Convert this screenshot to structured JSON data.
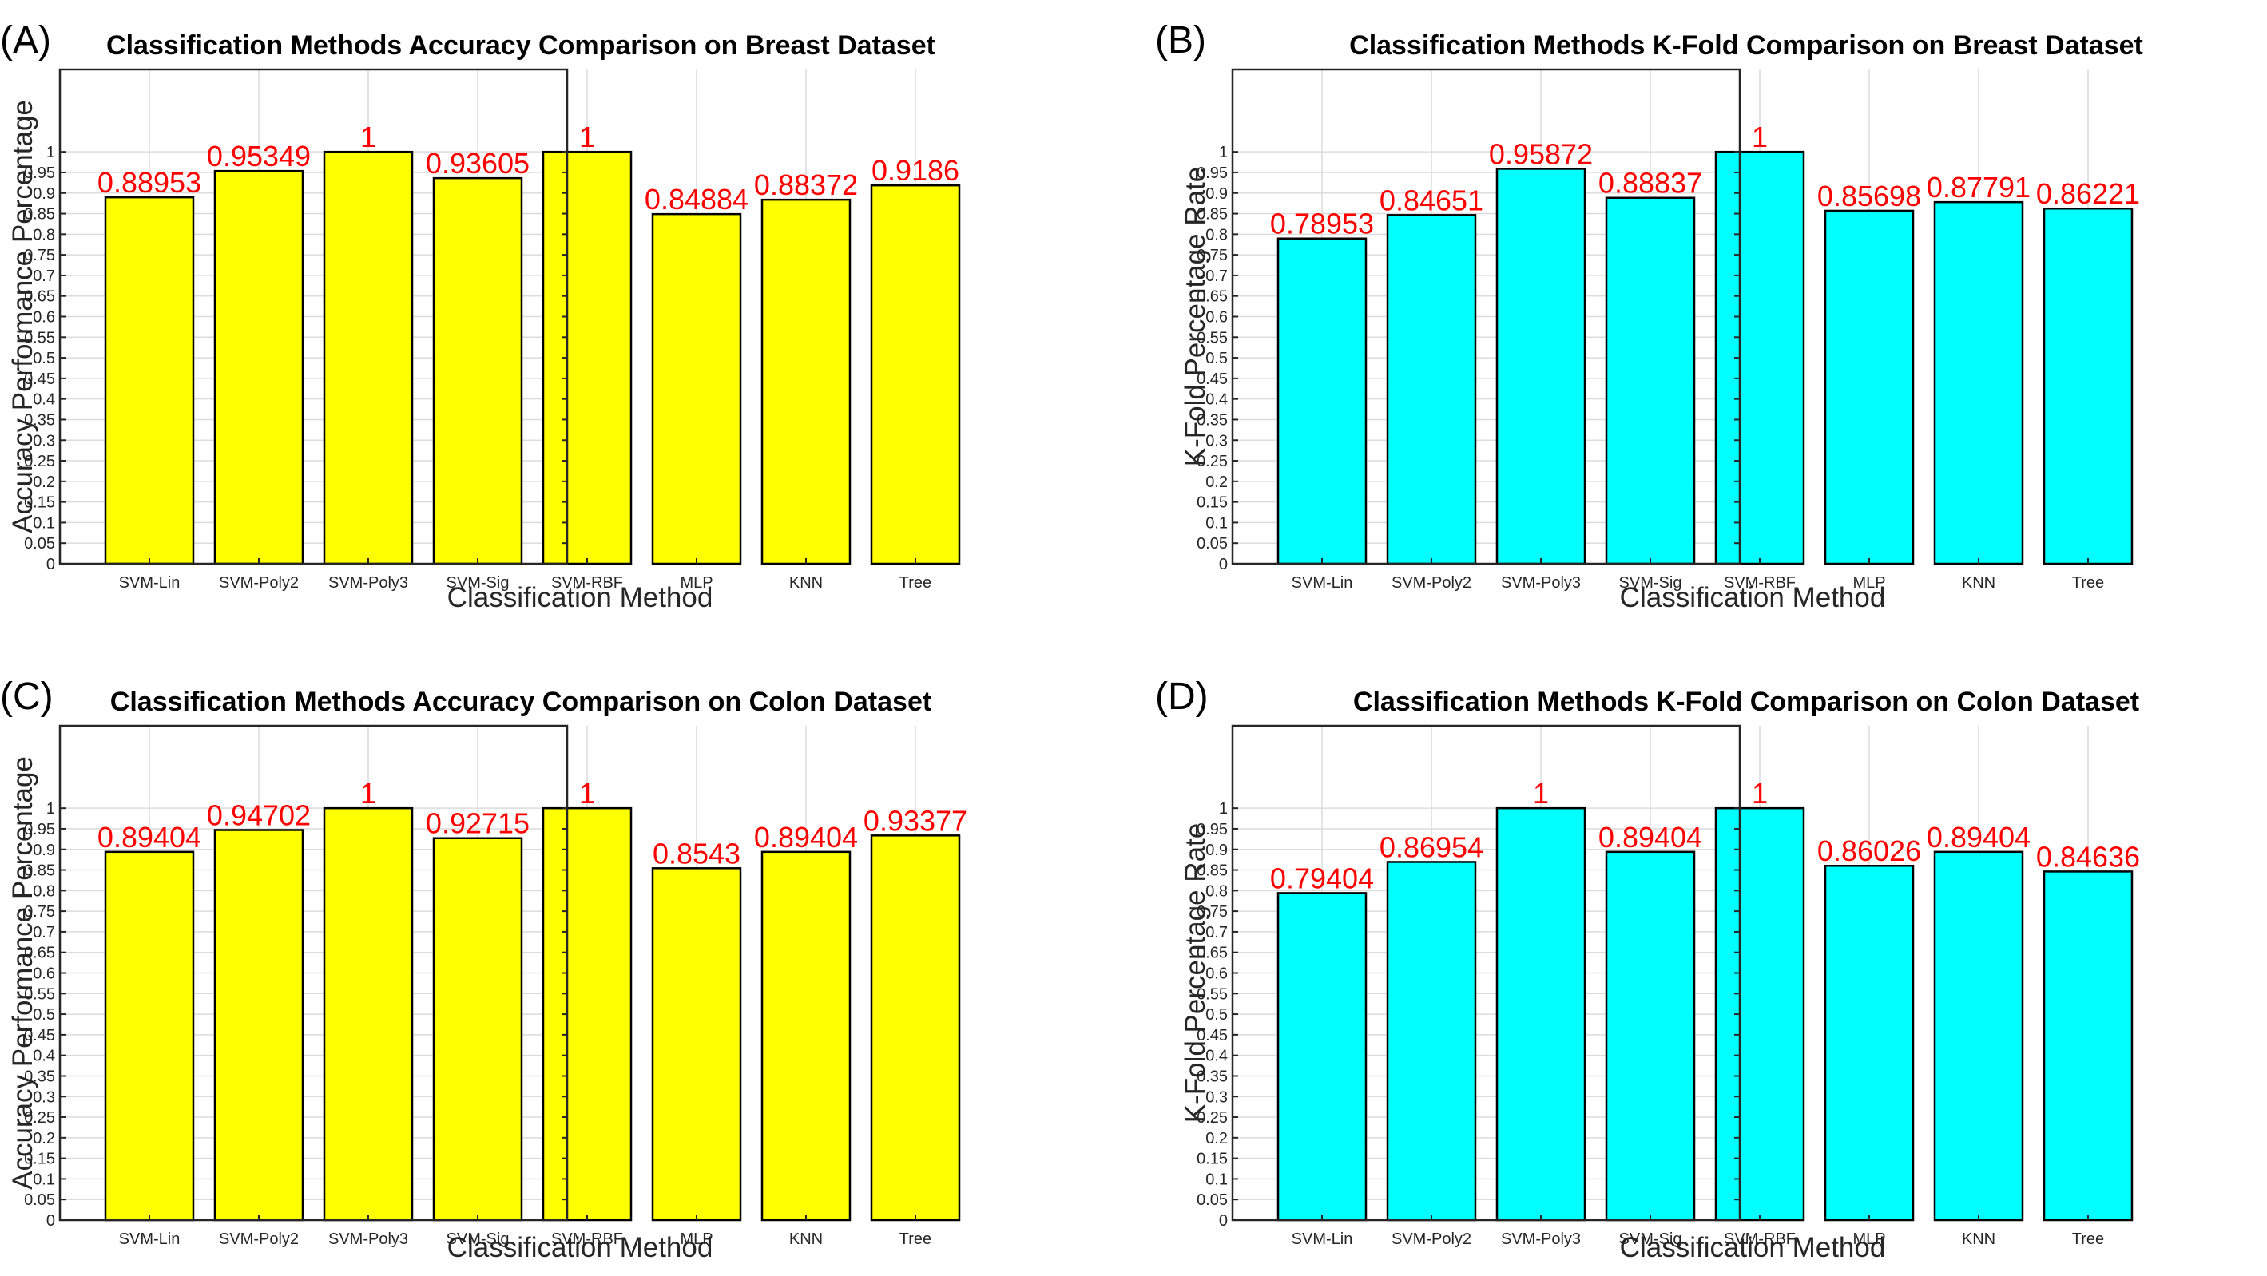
{
  "chart_data": [
    {
      "panel": "(A)",
      "type": "bar",
      "title": "Classification Methods Accuracy Comparison on Breast Dataset",
      "xlabel": "Classification Method",
      "ylabel": "Accuracy Performance Percentage",
      "categories": [
        "SVM-Lin",
        "SVM-Poly2",
        "SVM-Poly3",
        "SVM-Sig",
        "SVM-RBF",
        "MLP",
        "KNN",
        "Tree"
      ],
      "values": [
        0.88953,
        0.95349,
        1,
        0.93605,
        1,
        0.84884,
        0.88372,
        0.9186
      ],
      "value_labels": [
        "0.88953",
        "0.95349",
        "1",
        "0.93605",
        "1",
        "0.84884",
        "0.88372",
        "0.9186"
      ],
      "ylim": [
        0,
        1.2
      ],
      "yticks": [
        "0",
        "0.05",
        "0.1",
        "0.15",
        "0.2",
        "0.25",
        "0.3",
        "0.35",
        "0.4",
        "0.45",
        "0.5",
        "0.55",
        "0.6",
        "0.65",
        "0.7",
        "0.75",
        "0.8",
        "0.85",
        "0.9",
        "0.95",
        "1"
      ],
      "bar_color": "#ffff00",
      "label_color": "#ff0000",
      "grid": true
    },
    {
      "panel": "(B)",
      "type": "bar",
      "title": "Classification Methods K-Fold Comparison on Breast Dataset",
      "xlabel": "Classification Method",
      "ylabel": "K-Fold Percentage Rate",
      "categories": [
        "SVM-Lin",
        "SVM-Poly2",
        "SVM-Poly3",
        "SVM-Sig",
        "SVM-RBF",
        "MLP",
        "KNN",
        "Tree"
      ],
      "values": [
        0.78953,
        0.84651,
        0.95872,
        0.88837,
        1,
        0.85698,
        0.87791,
        0.86221
      ],
      "value_labels": [
        "0.78953",
        "0.84651",
        "0.95872",
        "0.88837",
        "1",
        "0.85698",
        "0.87791",
        "0.86221"
      ],
      "ylim": [
        0,
        1.2
      ],
      "yticks": [
        "0",
        "0.05",
        "0.1",
        "0.15",
        "0.2",
        "0.25",
        "0.3",
        "0.35",
        "0.4",
        "0.45",
        "0.5",
        "0.55",
        "0.6",
        "0.65",
        "0.7",
        "0.75",
        "0.8",
        "0.85",
        "0.9",
        "0.95",
        "1"
      ],
      "bar_color": "#00ffff",
      "label_color": "#ff0000",
      "grid": true
    },
    {
      "panel": "(C)",
      "type": "bar",
      "title": "Classification Methods Accuracy Comparison on Colon Dataset",
      "xlabel": "Classification Method",
      "ylabel": "Accuracy Performance Percentage",
      "categories": [
        "SVM-Lin",
        "SVM-Poly2",
        "SVM-Poly3",
        "SVM-Sig",
        "SVM-RBF",
        "MLP",
        "KNN",
        "Tree"
      ],
      "values": [
        0.89404,
        0.94702,
        1,
        0.92715,
        1,
        0.8543,
        0.89404,
        0.93377
      ],
      "value_labels": [
        "0.89404",
        "0.94702",
        "1",
        "0.92715",
        "1",
        "0.8543",
        "0.89404",
        "0.93377"
      ],
      "ylim": [
        0,
        1.2
      ],
      "yticks": [
        "0",
        "0.05",
        "0.1",
        "0.15",
        "0.2",
        "0.25",
        "0.3",
        "0.35",
        "0.4",
        "0.45",
        "0.5",
        "0.55",
        "0.6",
        "0.65",
        "0.7",
        "0.75",
        "0.8",
        "0.85",
        "0.9",
        "0.95",
        "1"
      ],
      "bar_color": "#ffff00",
      "label_color": "#ff0000",
      "grid": true
    },
    {
      "panel": "(D)",
      "type": "bar",
      "title": "Classification Methods K-Fold Comparison on Colon Dataset",
      "xlabel": "Classification Method",
      "ylabel": "K-Fold Percentage Rate",
      "categories": [
        "SVM-Lin",
        "SVM-Poly2",
        "SVM-Poly3",
        "SVM-Sig",
        "SVM-RBF",
        "MLP",
        "KNN",
        "Tree"
      ],
      "values": [
        0.79404,
        0.86954,
        1,
        0.89404,
        1,
        0.86026,
        0.89404,
        0.84636
      ],
      "value_labels": [
        "0.79404",
        "0.86954",
        "1",
        "0.89404",
        "1",
        "0.86026",
        "0.89404",
        "0.84636"
      ],
      "ylim": [
        0,
        1.2
      ],
      "yticks": [
        "0",
        "0.05",
        "0.1",
        "0.15",
        "0.2",
        "0.25",
        "0.3",
        "0.35",
        "0.4",
        "0.45",
        "0.5",
        "0.55",
        "0.6",
        "0.65",
        "0.7",
        "0.75",
        "0.8",
        "0.85",
        "0.9",
        "0.95",
        "1"
      ],
      "bar_color": "#00ffff",
      "label_color": "#ff0000",
      "grid": true
    }
  ]
}
